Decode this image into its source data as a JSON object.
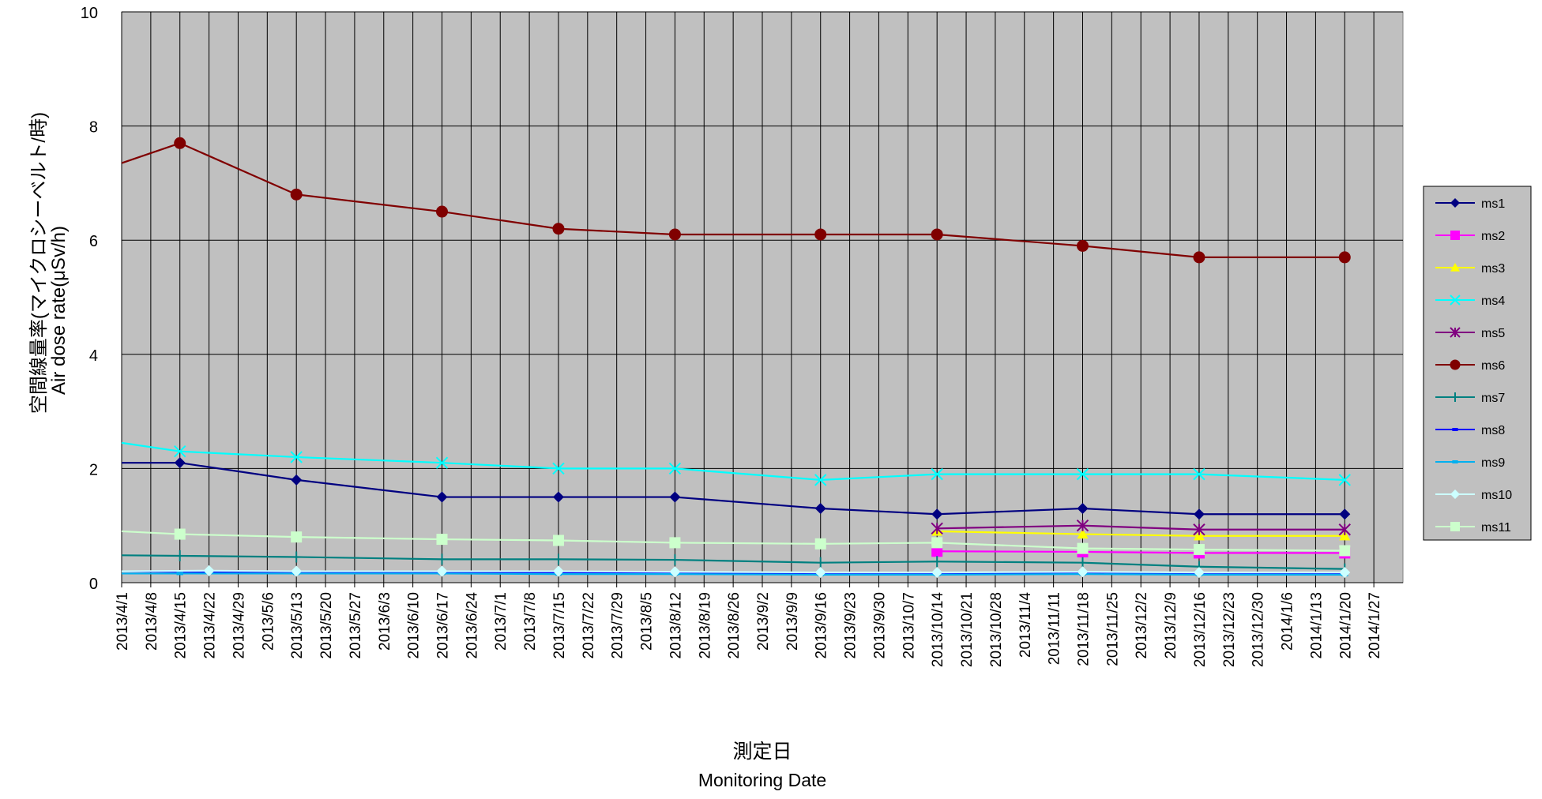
{
  "chart_data": {
    "type": "line",
    "title": "",
    "xlabel": [
      "測定日",
      "Monitoring Date"
    ],
    "ylabel": [
      "空間線量率(マイクロシーベルト/時)",
      "Air dose rate(μSv/h)"
    ],
    "ylim": [
      0,
      10
    ],
    "yticks": [
      "0",
      "2",
      "4",
      "6",
      "8",
      "10"
    ],
    "xlim": [
      "2013/4/1",
      "2014/2/3"
    ],
    "xticks": [
      "2013/4/1",
      "2013/4/8",
      "2013/4/15",
      "2013/4/22",
      "2013/4/29",
      "2013/5/6",
      "2013/5/13",
      "2013/5/20",
      "2013/5/27",
      "2013/6/3",
      "2013/6/10",
      "2013/6/17",
      "2013/6/24",
      "2013/7/1",
      "2013/7/8",
      "2013/7/15",
      "2013/7/22",
      "2013/7/29",
      "2013/8/5",
      "2013/8/12",
      "2013/8/19",
      "2013/8/26",
      "2013/9/2",
      "2013/9/9",
      "2013/9/16",
      "2013/9/23",
      "2013/9/30",
      "2013/10/7",
      "2013/10/14",
      "2013/10/21",
      "2013/10/28",
      "2013/11/4",
      "2013/11/11",
      "2013/11/18",
      "2013/11/25",
      "2013/12/2",
      "2013/12/9",
      "2013/12/16",
      "2013/12/23",
      "2013/12/30",
      "2014/1/6",
      "2014/1/13",
      "2014/1/20",
      "2014/1/27"
    ],
    "grid": true,
    "plot_background": "#c0c0c0",
    "legend_position": "right",
    "series": [
      {
        "name": "ms1",
        "color": "#000080",
        "marker": "diamond",
        "x": [
          "2013/4/1",
          "2013/4/15",
          "2013/5/13",
          "2013/6/17",
          "2013/7/15",
          "2013/8/12",
          "2013/9/16",
          "2013/10/14",
          "2013/11/18",
          "2013/12/16",
          "2014/1/20"
        ],
        "values": [
          2.1,
          2.1,
          1.8,
          1.5,
          1.5,
          1.5,
          1.3,
          1.2,
          1.3,
          1.2,
          1.2
        ]
      },
      {
        "name": "ms2",
        "color": "#ff00ff",
        "marker": "square",
        "x": [
          "2013/10/14",
          "2013/11/18",
          "2013/12/16",
          "2014/1/20"
        ],
        "values": [
          0.55,
          0.54,
          0.52,
          0.52
        ]
      },
      {
        "name": "ms3",
        "color": "#ffff00",
        "marker": "triangle",
        "x": [
          "2013/10/14",
          "2013/11/18",
          "2013/12/16",
          "2014/1/20"
        ],
        "values": [
          0.9,
          0.85,
          0.82,
          0.82
        ]
      },
      {
        "name": "ms4",
        "color": "#00ffff",
        "marker": "x",
        "x": [
          "2013/4/1",
          "2013/4/15",
          "2013/5/13",
          "2013/6/17",
          "2013/7/15",
          "2013/8/12",
          "2013/9/16",
          "2013/10/14",
          "2013/11/18",
          "2013/12/16",
          "2014/1/20"
        ],
        "values": [
          2.45,
          2.3,
          2.2,
          2.1,
          2.0,
          2.0,
          1.8,
          1.9,
          1.9,
          1.9,
          1.8
        ]
      },
      {
        "name": "ms5",
        "color": "#800080",
        "marker": "star",
        "x": [
          "2013/10/14",
          "2013/11/18",
          "2013/12/16",
          "2014/1/20"
        ],
        "values": [
          0.95,
          1.0,
          0.93,
          0.93
        ]
      },
      {
        "name": "ms6",
        "color": "#800000",
        "marker": "circle",
        "x": [
          "2013/4/1",
          "2013/4/15",
          "2013/5/13",
          "2013/6/17",
          "2013/7/15",
          "2013/8/12",
          "2013/9/16",
          "2013/10/14",
          "2013/11/18",
          "2013/12/16",
          "2014/1/20"
        ],
        "values": [
          7.35,
          7.7,
          6.8,
          6.5,
          6.2,
          6.1,
          6.1,
          6.1,
          5.9,
          5.7,
          5.7
        ]
      },
      {
        "name": "ms7",
        "color": "#008080",
        "marker": "plus",
        "x": [
          "2013/4/1",
          "2013/4/15",
          "2013/5/13",
          "2013/6/17",
          "2013/7/15",
          "2013/8/12",
          "2013/9/16",
          "2013/10/14",
          "2013/11/18",
          "2013/12/16",
          "2014/1/20"
        ],
        "values": [
          0.48,
          0.47,
          0.45,
          0.41,
          0.41,
          0.4,
          0.35,
          0.37,
          0.35,
          0.28,
          0.24
        ]
      },
      {
        "name": "ms8",
        "color": "#0000ff",
        "marker": "dash",
        "x": [
          "2013/4/1",
          "2013/4/15",
          "2013/5/13",
          "2013/6/17",
          "2013/7/15",
          "2013/8/12",
          "2013/9/16",
          "2013/10/14",
          "2013/11/18",
          "2013/12/16",
          "2014/1/20"
        ],
        "values": [
          0.2,
          0.19,
          0.19,
          0.18,
          0.18,
          0.17,
          0.16,
          0.16,
          0.17,
          0.16,
          0.16
        ]
      },
      {
        "name": "ms9",
        "color": "#00b0f0",
        "marker": "dash",
        "x": [
          "2013/4/1",
          "2013/4/15",
          "2013/5/13",
          "2013/6/17",
          "2013/7/15",
          "2013/8/12",
          "2013/9/16",
          "2013/10/14",
          "2013/11/18",
          "2013/12/16",
          "2014/1/20"
        ],
        "values": [
          0.16,
          0.16,
          0.16,
          0.16,
          0.15,
          0.15,
          0.14,
          0.14,
          0.15,
          0.14,
          0.14
        ]
      },
      {
        "name": "ms10",
        "color": "#ccffff",
        "marker": "diamond",
        "x": [
          "2013/4/1",
          "2013/4/22",
          "2013/5/13",
          "2013/6/17",
          "2013/7/15",
          "2013/8/12",
          "2013/9/16",
          "2013/10/14",
          "2013/11/18",
          "2013/12/16",
          "2014/1/20"
        ],
        "values": [
          0.2,
          0.21,
          0.2,
          0.2,
          0.2,
          0.19,
          0.18,
          0.18,
          0.19,
          0.18,
          0.18
        ]
      },
      {
        "name": "ms11",
        "color": "#ccffcc",
        "marker": "square",
        "x": [
          "2013/4/1",
          "2013/4/15",
          "2013/5/13",
          "2013/6/17",
          "2013/7/15",
          "2013/8/12",
          "2013/9/16",
          "2013/10/14",
          "2013/11/18",
          "2013/12/16",
          "2014/1/20"
        ],
        "values": [
          0.9,
          0.85,
          0.8,
          0.76,
          0.74,
          0.7,
          0.68,
          0.7,
          0.6,
          0.58,
          0.56
        ]
      }
    ]
  }
}
